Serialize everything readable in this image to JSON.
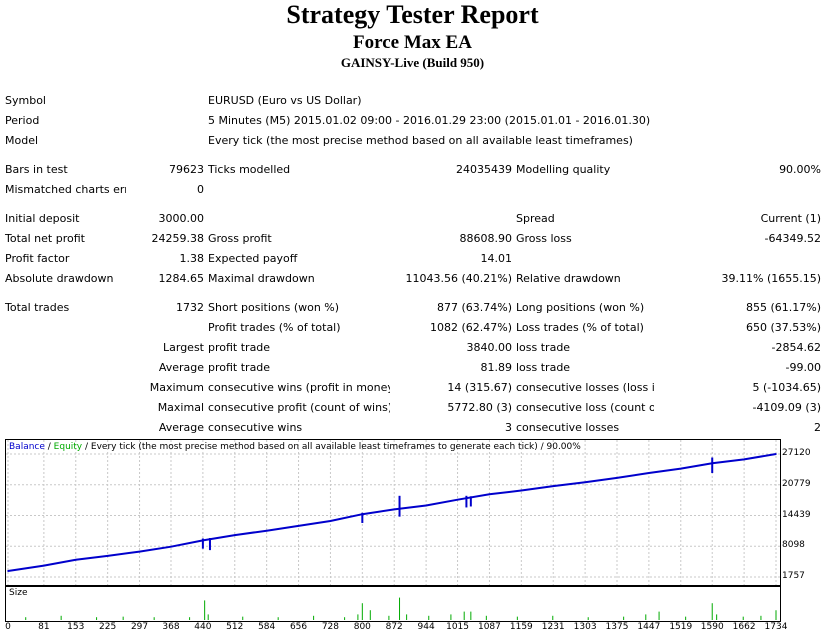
{
  "title": "Strategy Tester Report",
  "subtitle": "Force Max EA",
  "build": "GAINSY-Live (Build 950)",
  "info": {
    "symbol_label": "Symbol",
    "symbol": "EURUSD (Euro vs US Dollar)",
    "period_label": "Period",
    "period": "5 Minutes (M5) 2015.01.02 09:00 - 2016.01.29 23:00 (2015.01.01 - 2016.01.30)",
    "model_label": "Model",
    "model": "Every tick (the most precise method based on all available least timeframes)"
  },
  "stats": {
    "bars_label": "Bars in test",
    "bars": "79623",
    "ticks_label": "Ticks modelled",
    "ticks": "24035439",
    "quality_label": "Modelling quality",
    "quality": "90.00%",
    "mismatch_label": "Mismatched charts errors",
    "mismatch": "0",
    "deposit_label": "Initial deposit",
    "deposit": "3000.00",
    "spread_label": "Spread",
    "spread": "Current (1)",
    "netprofit_label": "Total net profit",
    "netprofit": "24259.38",
    "grossprofit_label": "Gross profit",
    "grossprofit": "88608.90",
    "grossloss_label": "Gross loss",
    "grossloss": "-64349.52",
    "pf_label": "Profit factor",
    "pf": "1.38",
    "ep_label": "Expected payoff",
    "ep": "14.01",
    "absdd_label": "Absolute drawdown",
    "absdd": "1284.65",
    "maxdd_label": "Maximal drawdown",
    "maxdd": "11043.56 (40.21%)",
    "reldd_label": "Relative drawdown",
    "reldd": "39.11% (1655.15)",
    "trades_label": "Total trades",
    "trades": "1732",
    "short_label": "Short positions (won %)",
    "short": "877 (63.74%)",
    "long_label": "Long positions (won %)",
    "long": "855 (61.17%)",
    "pt_label": "Profit trades (% of total)",
    "pt": "1082 (62.47%)",
    "lt_label": "Loss trades (% of total)",
    "lt": "650 (37.53%)",
    "largest_label": "Largest",
    "largest_pt_label": "profit trade",
    "largest_pt": "3840.00",
    "largest_lt_label": "loss trade",
    "largest_lt": "-2854.62",
    "average_label": "Average",
    "average_pt_label": "profit trade",
    "average_pt": "81.89",
    "average_lt_label": "loss trade",
    "average_lt": "-99.00",
    "maximum_label": "Maximum",
    "max_cw_label": "consecutive wins (profit in money)",
    "max_cw": "14 (315.67)",
    "max_cl_label": "consecutive losses (loss in money)",
    "max_cl": "5 (-1034.65)",
    "maximal_label": "Maximal",
    "mxl_cp_label": "consecutive profit (count of wins)",
    "mxl_cp": "5772.80 (3)",
    "mxl_cl_label": "consecutive loss (count of losses)",
    "mxl_cl": "-4109.09 (3)",
    "avg_label": "Average",
    "avg_cw_label": "consecutive wins",
    "avg_cw": "3",
    "avg_cl_label": "consecutive losses",
    "avg_cl": "2"
  },
  "chart_data": {
    "type": "line",
    "legend": {
      "balance": "Balance",
      "sep1": " / ",
      "equity": "Equity",
      "rest": " / Every tick (the most precise method based on all available least timeframes to generate each tick) / 90.00%"
    },
    "colors": {
      "balance": "#0000cc",
      "equity": "#00aa00",
      "size": "#00aa00",
      "grid": "#c8c8c8"
    },
    "x": [
      0,
      81,
      153,
      225,
      297,
      368,
      440,
      512,
      584,
      656,
      728,
      800,
      872,
      944,
      1015,
      1087,
      1159,
      1231,
      1303,
      1375,
      1447,
      1519,
      1590,
      1662,
      1734
    ],
    "xlim": [
      0,
      1734
    ],
    "ylim": [
      1757,
      27120
    ],
    "y_ticks": [
      "27120",
      "20779",
      "14439",
      "8098",
      "1757"
    ],
    "series": [
      {
        "name": "Balance",
        "points": [
          [
            0,
            3000
          ],
          [
            81,
            4100
          ],
          [
            153,
            5300
          ],
          [
            225,
            6100
          ],
          [
            297,
            7000
          ],
          [
            368,
            8000
          ],
          [
            440,
            9300
          ],
          [
            512,
            10400
          ],
          [
            584,
            11300
          ],
          [
            656,
            12300
          ],
          [
            728,
            13300
          ],
          [
            800,
            14700
          ],
          [
            872,
            15700
          ],
          [
            944,
            16500
          ],
          [
            1015,
            17700
          ],
          [
            1087,
            18800
          ],
          [
            1159,
            19600
          ],
          [
            1231,
            20500
          ],
          [
            1303,
            21300
          ],
          [
            1375,
            22200
          ],
          [
            1447,
            23200
          ],
          [
            1519,
            24100
          ],
          [
            1590,
            25200
          ],
          [
            1662,
            26000
          ],
          [
            1734,
            27120
          ]
        ]
      }
    ],
    "spikes": [
      {
        "x": 440,
        "low": 7600,
        "high": 9700
      },
      {
        "x": 456,
        "low": 7300,
        "high": 9800
      },
      {
        "x": 800,
        "low": 12900,
        "high": 15000
      },
      {
        "x": 884,
        "low": 14200,
        "high": 18500
      },
      {
        "x": 1035,
        "low": 16100,
        "high": 18500
      },
      {
        "x": 1045,
        "low": 16300,
        "high": 18400
      },
      {
        "x": 1590,
        "low": 23200,
        "high": 26400
      }
    ],
    "size_label": "Size",
    "size_bars": [
      {
        "x": 40,
        "v": 0.1
      },
      {
        "x": 120,
        "v": 0.15
      },
      {
        "x": 200,
        "v": 0.1
      },
      {
        "x": 260,
        "v": 0.12
      },
      {
        "x": 330,
        "v": 0.1
      },
      {
        "x": 410,
        "v": 0.1
      },
      {
        "x": 444,
        "v": 0.7
      },
      {
        "x": 452,
        "v": 0.2
      },
      {
        "x": 530,
        "v": 0.12
      },
      {
        "x": 610,
        "v": 0.1
      },
      {
        "x": 690,
        "v": 0.15
      },
      {
        "x": 760,
        "v": 0.1
      },
      {
        "x": 790,
        "v": 0.2
      },
      {
        "x": 800,
        "v": 0.6
      },
      {
        "x": 818,
        "v": 0.35
      },
      {
        "x": 860,
        "v": 0.15
      },
      {
        "x": 884,
        "v": 0.8
      },
      {
        "x": 900,
        "v": 0.2
      },
      {
        "x": 950,
        "v": 0.15
      },
      {
        "x": 1000,
        "v": 0.2
      },
      {
        "x": 1030,
        "v": 0.3
      },
      {
        "x": 1045,
        "v": 0.3
      },
      {
        "x": 1080,
        "v": 0.15
      },
      {
        "x": 1150,
        "v": 0.12
      },
      {
        "x": 1230,
        "v": 0.15
      },
      {
        "x": 1310,
        "v": 0.1
      },
      {
        "x": 1390,
        "v": 0.12
      },
      {
        "x": 1440,
        "v": 0.2
      },
      {
        "x": 1470,
        "v": 0.3
      },
      {
        "x": 1530,
        "v": 0.12
      },
      {
        "x": 1590,
        "v": 0.6
      },
      {
        "x": 1600,
        "v": 0.2
      },
      {
        "x": 1660,
        "v": 0.12
      },
      {
        "x": 1700,
        "v": 0.15
      },
      {
        "x": 1734,
        "v": 0.35
      }
    ]
  }
}
